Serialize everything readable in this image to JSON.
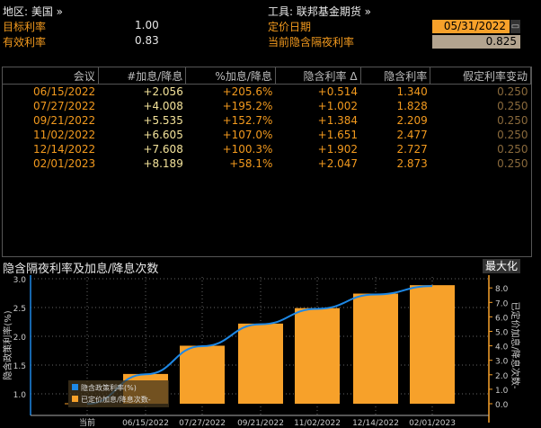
{
  "header": {
    "region_label": "地区: 美国 »",
    "instrument_label": "工具: 联邦基金期货 »",
    "target_rate_label": "目标利率",
    "target_rate_value": "1.00",
    "effective_rate_label": "有效利率",
    "effective_rate_value": "0.83",
    "pricing_date_label": "定价日期",
    "pricing_date_value": "05/31/2022",
    "implied_overnight_label": "当前隐含隔夜利率",
    "implied_overnight_value": "0.825"
  },
  "table": {
    "columns": [
      "会议",
      "#加息/降息",
      "%加息/降息",
      "隐含利率 Δ",
      "隐含利率",
      "假定利率变动"
    ],
    "rows": [
      [
        "06/15/2022",
        "+2.056",
        "+205.6%",
        "+0.514",
        "1.340",
        "0.250"
      ],
      [
        "07/27/2022",
        "+4.008",
        "+195.2%",
        "+1.002",
        "1.828",
        "0.250"
      ],
      [
        "09/21/2022",
        "+5.535",
        "+152.7%",
        "+1.384",
        "2.209",
        "0.250"
      ],
      [
        "11/02/2022",
        "+6.605",
        "+107.0%",
        "+1.651",
        "2.477",
        "0.250"
      ],
      [
        "12/14/2022",
        "+7.608",
        "+100.3%",
        "+1.902",
        "2.727",
        "0.250"
      ],
      [
        "02/01/2023",
        "+8.189",
        "+58.1%",
        "+2.047",
        "2.873",
        "0.250"
      ]
    ]
  },
  "chart_section": {
    "title": "隐含隔夜利率及加息/降息次数",
    "maximize_label": "最大化"
  },
  "chart_data": {
    "type": "bar+line",
    "categories": [
      "当前",
      "06/15/2022",
      "07/27/2022",
      "09/21/2022",
      "11/02/2022",
      "12/14/2022",
      "02/01/2023"
    ],
    "series": [
      {
        "name": "隐含政策利率(%)",
        "type": "line",
        "axis": "left",
        "color": "#1e88e5",
        "values": [
          0.825,
          1.34,
          1.828,
          2.209,
          2.477,
          2.727,
          2.873
        ]
      },
      {
        "name": "已定价加息/降息次数-",
        "type": "bar",
        "axis": "right",
        "color": "#f7a12a",
        "values": [
          0,
          2.056,
          4.008,
          5.535,
          6.605,
          7.608,
          8.189
        ]
      }
    ],
    "ylabel": "隐含政策利率(%)",
    "y2label": "已定价加息/降息次数-",
    "ylim": [
      0.75,
      3.0
    ],
    "yticks": [
      "1.0",
      "1.5",
      "2.0",
      "2.5",
      "3.0"
    ],
    "y2lim": [
      -0.7,
      9.0
    ],
    "y2ticks": [
      "0.0",
      "1.0",
      "2.0",
      "3.0",
      "4.0",
      "5.0",
      "6.0",
      "7.0",
      "8.0"
    ],
    "grid": true,
    "legend": "bottom-left"
  },
  "colors": {
    "accent": "#f39a1e",
    "field_bg": "#f7a12a",
    "readonly_bg": "#b3a48f"
  }
}
